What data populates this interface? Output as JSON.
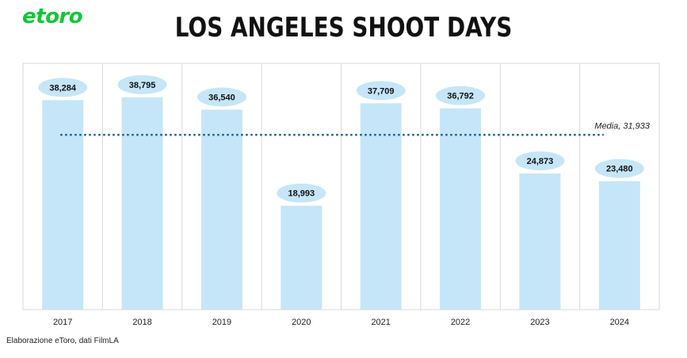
{
  "brand": {
    "logo_text": "etoro",
    "logo_color": "#13c636"
  },
  "chart_data": {
    "type": "bar",
    "title": "LOS ANGELES SHOOT DAYS",
    "categories": [
      "2017",
      "2018",
      "2019",
      "2020",
      "2021",
      "2022",
      "2023",
      "2024"
    ],
    "values": [
      38284,
      38795,
      36540,
      18993,
      37709,
      36792,
      24873,
      23480
    ],
    "data_labels": [
      "38,284",
      "38,795",
      "36,540",
      "18,993",
      "37,709",
      "36,792",
      "24,873",
      "23,480"
    ],
    "ylim": [
      0,
      45000
    ],
    "xlabel": "",
    "ylabel": "",
    "grid": "vertical category separators",
    "bar_color": "#c5e6f8",
    "label_bubble_color": "#c5e6f8",
    "reference_line": {
      "label": "Media,",
      "value_label": "31,933",
      "value": 31933,
      "color": "#1f5f8b",
      "style": "dotted"
    }
  },
  "footer": {
    "source": "Elaborazione eToro, dati FilmLA"
  }
}
